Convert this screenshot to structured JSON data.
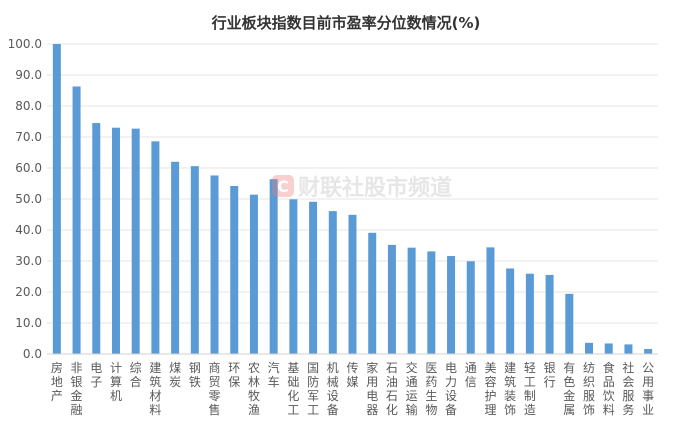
{
  "chart_data": {
    "type": "bar",
    "title": "行业板块指数目前市盈率分位数情况(%)",
    "categories": [
      "房地产",
      "非银金融",
      "电子",
      "计算机",
      "综合",
      "建筑材料",
      "煤炭",
      "钢铁",
      "商贸零售",
      "环保",
      "农林牧渔",
      "汽车",
      "基础化工",
      "国防军工",
      "机械设备",
      "传媒",
      "家用电器",
      "石油石化",
      "交通运输",
      "医药生物",
      "电力设备",
      "通信",
      "美容护理",
      "建筑装饰",
      "轻工制造",
      "银行",
      "有色金属",
      "纺织服饰",
      "食品饮料",
      "社会服务",
      "公用事业"
    ],
    "values": [
      100.0,
      86.3,
      74.5,
      73.0,
      72.7,
      68.6,
      62.0,
      60.6,
      57.6,
      54.2,
      51.4,
      56.4,
      49.9,
      49.1,
      46.1,
      44.9,
      39.1,
      35.2,
      34.3,
      33.1,
      31.6,
      29.9,
      34.4,
      27.6,
      25.9,
      25.5,
      19.4,
      3.6,
      3.4,
      3.1,
      1.6
    ],
    "ylim": [
      0,
      100
    ],
    "yticks": [
      "0.0",
      "10.0",
      "20.0",
      "30.0",
      "40.0",
      "50.0",
      "60.0",
      "70.0",
      "80.0",
      "90.0",
      "100.0"
    ],
    "grid": true,
    "bar_color": "#5b9bd5"
  },
  "watermark": {
    "icon": "C",
    "text": "财联社股市频道"
  }
}
